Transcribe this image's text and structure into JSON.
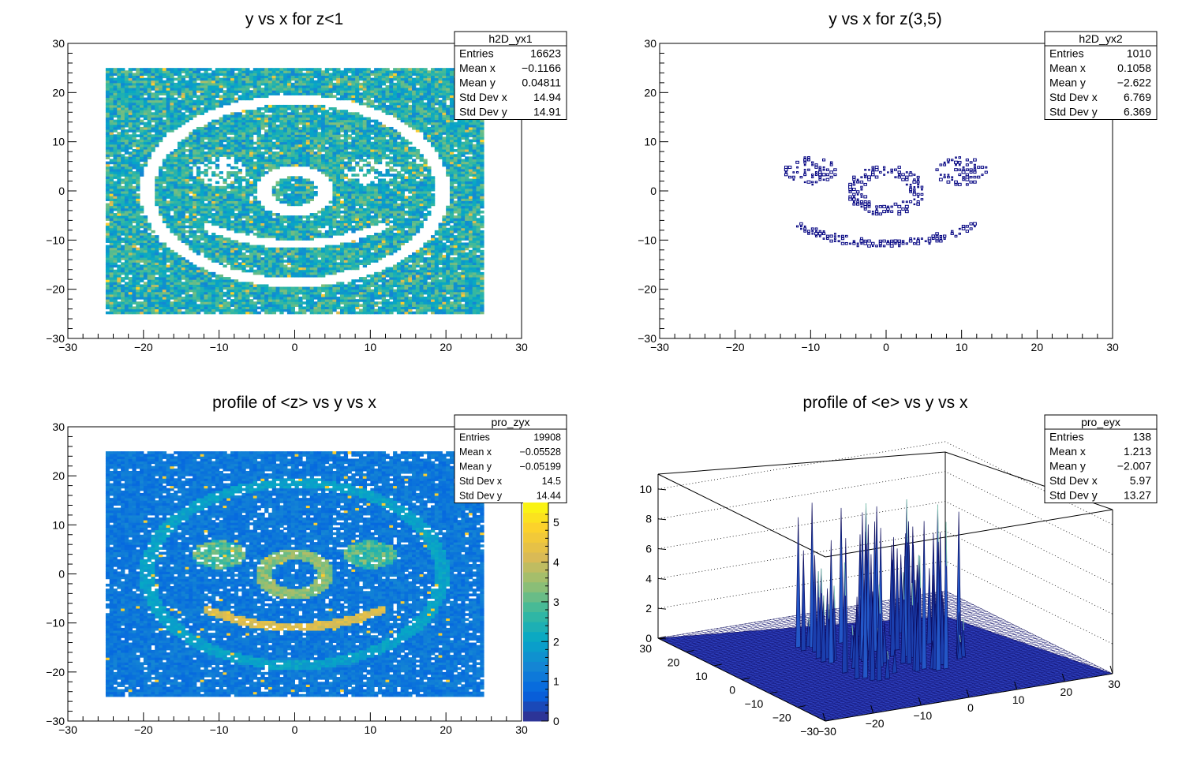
{
  "chart_data": [
    {
      "type": "heatmap",
      "title": "y vs x for z<1",
      "xlim": [
        -30,
        30
      ],
      "ylim": [
        -30,
        30
      ],
      "x_ticks": [
        "−30",
        "−20",
        "−10",
        "0",
        "10",
        "20",
        "30"
      ],
      "y_ticks": [
        "−30",
        "−20",
        "−10",
        "0",
        "10",
        "20",
        "30"
      ],
      "fill_range": {
        "x": [
          -25,
          25
        ],
        "y": [
          -25,
          25
        ]
      },
      "pattern": "smiley face cut out (empty bins)",
      "stats": {
        "name": "h2D_yx1",
        "rows": [
          {
            "label": "Entries",
            "value": "16623"
          },
          {
            "label": "Mean x",
            "value": "−0.1166"
          },
          {
            "label": "Mean y",
            "value": "0.04811"
          },
          {
            "label": "Std Dev x",
            "value": "14.94"
          },
          {
            "label": "Std Dev y",
            "value": "14.91"
          }
        ]
      }
    },
    {
      "type": "scatter",
      "title": "y vs x for z(3,5)",
      "xlim": [
        -30,
        30
      ],
      "ylim": [
        -30,
        30
      ],
      "x_ticks": [
        "−30",
        "−20",
        "−10",
        "0",
        "10",
        "20",
        "30"
      ],
      "y_ticks": [
        "−30",
        "−20",
        "−10",
        "0",
        "10",
        "20",
        "30"
      ],
      "pattern": "smiley eyes, nose ring and mouth drawn as box markers",
      "marker_color": "#000080",
      "stats": {
        "name": "h2D_yx2",
        "rows": [
          {
            "label": "Entries",
            "value": "1010"
          },
          {
            "label": "Mean x",
            "value": "0.1058"
          },
          {
            "label": "Mean y",
            "value": "−2.622"
          },
          {
            "label": "Std Dev x",
            "value": "6.769"
          },
          {
            "label": "Std Dev y",
            "value": "6.369"
          }
        ]
      }
    },
    {
      "type": "heatmap",
      "title": "profile of <z> vs y vs x",
      "xlim": [
        -30,
        30
      ],
      "ylim": [
        -30,
        30
      ],
      "x_ticks": [
        "−30",
        "−20",
        "−10",
        "0",
        "10",
        "20",
        "30"
      ],
      "y_ticks": [
        "−30",
        "−20",
        "−10",
        "0",
        "10",
        "20",
        "30"
      ],
      "fill_range": {
        "x": [
          -25,
          25
        ],
        "y": [
          -25,
          25
        ]
      },
      "pattern": "smiley face with higher <z> values",
      "color_scale": {
        "min": 0,
        "max": 5.5,
        "ticks": [
          "0",
          "1",
          "2",
          "3",
          "4",
          "5"
        ]
      },
      "stats": {
        "name": "pro_zyx",
        "rows": [
          {
            "label": "Entries",
            "value": "19908"
          },
          {
            "label": "Mean x",
            "value": "−0.05528"
          },
          {
            "label": "Mean y",
            "value": "−0.05199"
          },
          {
            "label": "Std Dev x",
            "value": "14.5"
          },
          {
            "label": "Std Dev y",
            "value": "14.44"
          }
        ]
      }
    },
    {
      "type": "surface",
      "title": "profile of <e> vs y vs x",
      "xlim": [
        -30,
        30
      ],
      "ylim": [
        -30,
        30
      ],
      "zlim": [
        0,
        11
      ],
      "x_ticks": [
        "−30",
        "−20",
        "−10",
        "0",
        "10",
        "20",
        "30"
      ],
      "y_ticks": [
        "−30",
        "−20",
        "−10",
        "0",
        "10",
        "20",
        "30"
      ],
      "z_ticks": [
        "0",
        "2",
        "4",
        "6",
        "8",
        "10"
      ],
      "pattern": "flat surface with tall spikes",
      "stats": {
        "name": "pro_eyx",
        "rows": [
          {
            "label": "Entries",
            "value": "138"
          },
          {
            "label": "Mean x",
            "value": "1.213"
          },
          {
            "label": "Mean y",
            "value": "−2.007"
          },
          {
            "label": "Std Dev x",
            "value": "5.97"
          },
          {
            "label": "Std Dev y",
            "value": "13.27"
          }
        ]
      }
    }
  ]
}
